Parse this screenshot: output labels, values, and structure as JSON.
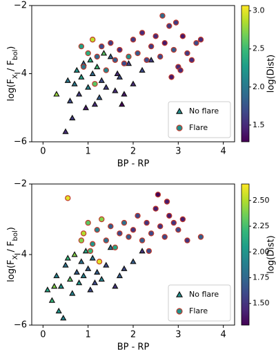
{
  "chart_data": [
    {
      "type": "scatter",
      "xlabel": "BP - RP",
      "ylabel": [
        "log(F",
        "X",
        " / F",
        "bol",
        ")"
      ],
      "xlim": [
        -0.25,
        4.25
      ],
      "ylim": [
        -6,
        -2
      ],
      "xticks": [
        0,
        1,
        2,
        3,
        4
      ],
      "yticks": [
        {
          "value": -6,
          "label": "−6"
        },
        {
          "value": -4,
          "label": "−4"
        },
        {
          "value": -2,
          "label": "−2"
        }
      ],
      "legend": "lower right",
      "colorbar": {
        "label": "log(Dist)",
        "colormap": "viridis",
        "clim": [
          1.28,
          3.07
        ],
        "ticks": [
          1.5,
          {
            "value": 2,
            "label": "2.0"
          },
          2.5,
          {
            "value": 3,
            "label": "3.0"
          }
        ]
      },
      "series": [
        {
          "name": "No flare",
          "marker": "triangle",
          "edgecolor": "#111111",
          "x": [
            0.5,
            0.6,
            0.7,
            0.75,
            0.8,
            0.85,
            0.9,
            0.95,
            1.0,
            1.05,
            1.1,
            1.15,
            1.2,
            1.3,
            1.4,
            1.5,
            1.6,
            1.7,
            1.8,
            1.9,
            2.0,
            2.2,
            0.3,
            0.65,
            0.55,
            1.25,
            1.35,
            1.75,
            2.4,
            1.65
          ],
          "values": [
            -5.7,
            -4.8,
            -4.3,
            -3.9,
            -4.6,
            -4.1,
            -3.7,
            -5.0,
            -4.4,
            -3.6,
            -4.0,
            -4.9,
            -3.8,
            -4.2,
            -4.4,
            -3.5,
            -4.5,
            -4.1,
            -4.6,
            -3.7,
            -4.3,
            -3.9,
            -4.6,
            -5.3,
            -4.2,
            -4.7,
            -3.4,
            -4.9,
            -3.6,
            -4.0
          ],
          "c": [
            1.5,
            1.7,
            2.0,
            2.2,
            1.6,
            2.3,
            1.8,
            1.4,
            2.1,
            2.4,
            1.9,
            1.5,
            2.5,
            1.7,
            1.6,
            1.8,
            1.5,
            1.7,
            1.4,
            1.6,
            1.5,
            1.7,
            2.8,
            1.6,
            2.0,
            1.8,
            2.6,
            1.3,
            1.6,
            1.5
          ]
        },
        {
          "name": "Flare",
          "marker": "circle",
          "edgecolor": "#c0392b",
          "x": [
            0.9,
            1.0,
            1.1,
            1.2,
            1.3,
            1.4,
            1.5,
            1.6,
            1.7,
            1.8,
            1.9,
            2.0,
            2.1,
            2.2,
            2.3,
            2.4,
            2.5,
            2.6,
            2.7,
            2.8,
            2.9,
            3.0,
            3.1,
            3.2,
            3.3,
            3.4,
            3.5,
            2.65,
            2.85,
            1.15,
            0.85,
            2.95,
            3.05
          ],
          "values": [
            -3.8,
            -3.4,
            -3.0,
            -3.5,
            -3.2,
            -3.9,
            -3.1,
            -3.6,
            -3.3,
            -3.7,
            -3.5,
            -3.0,
            -3.4,
            -2.8,
            -3.6,
            -3.2,
            -2.9,
            -3.5,
            -3.1,
            -2.6,
            -3.3,
            -3.8,
            -2.9,
            -3.4,
            -3.6,
            -3.1,
            -3.0,
            -2.3,
            -4.1,
            -4.3,
            -3.2,
            -2.5,
            -3.9
          ],
          "c": [
            2.0,
            2.4,
            2.9,
            1.9,
            1.7,
            2.1,
            1.6,
            1.8,
            1.5,
            1.7,
            2.2,
            1.6,
            1.8,
            1.5,
            1.7,
            1.6,
            1.5,
            1.7,
            1.4,
            1.6,
            1.8,
            1.5,
            1.4,
            1.6,
            1.5,
            1.7,
            1.5,
            1.9,
            1.4,
            2.6,
            2.3,
            1.6,
            1.5
          ]
        }
      ]
    },
    {
      "type": "scatter",
      "xlabel": "BP - RP",
      "ylabel": [
        "log(F",
        "X",
        " / F",
        "bol",
        ")"
      ],
      "xlim": [
        -0.25,
        4.25
      ],
      "ylim": [
        -6,
        -2
      ],
      "xticks": [
        0,
        1,
        2,
        3,
        4
      ],
      "yticks": [
        {
          "value": -6,
          "label": "−6"
        },
        {
          "value": -4,
          "label": "−4"
        },
        {
          "value": -2,
          "label": "−2"
        }
      ],
      "legend": "lower right",
      "colorbar": {
        "label": "log(Dist)",
        "colormap": "viridis",
        "clim": [
          1.29,
          2.66
        ],
        "ticks": [
          {
            "value": 1.5,
            "label": "1.50"
          },
          {
            "value": 1.75,
            "label": "1.75"
          },
          {
            "value": 2,
            "label": "2.00"
          },
          {
            "value": 2.25,
            "label": "2.25"
          },
          {
            "value": 2.5,
            "label": "2.50"
          }
        ]
      },
      "series": [
        {
          "name": "No flare",
          "marker": "triangle",
          "edgecolor": "#111111",
          "x": [
            0.1,
            0.2,
            0.3,
            0.4,
            0.5,
            0.6,
            0.65,
            0.7,
            0.75,
            0.8,
            0.85,
            0.9,
            0.95,
            1.0,
            1.05,
            1.1,
            1.2,
            1.3,
            1.4,
            1.5,
            1.6,
            1.8,
            2.0,
            2.2,
            0.35,
            0.55,
            0.45,
            1.15,
            1.7,
            0.25
          ],
          "values": [
            -5.0,
            -5.3,
            -4.6,
            -4.9,
            -4.3,
            -4.7,
            -5.1,
            -4.0,
            -4.5,
            -4.8,
            -4.2,
            -4.6,
            -3.9,
            -4.4,
            -5.0,
            -4.1,
            -4.5,
            -4.7,
            -4.3,
            -3.8,
            -4.9,
            -4.4,
            -4.2,
            -3.9,
            -5.6,
            -4.1,
            -5.8,
            -4.8,
            -4.6,
            -4.9
          ],
          "c": [
            2.1,
            2.2,
            1.9,
            2.0,
            1.8,
            2.3,
            1.9,
            2.4,
            1.7,
            2.0,
            1.8,
            1.9,
            2.1,
            1.7,
            1.6,
            1.8,
            1.7,
            1.9,
            1.6,
            1.8,
            1.5,
            1.6,
            1.7,
            1.5,
            2.0,
            2.2,
            1.9,
            1.6,
            1.7,
            2.4
          ]
        },
        {
          "name": "Flare",
          "marker": "circle",
          "edgecolor": "#c0392b",
          "x": [
            0.55,
            0.9,
            1.0,
            1.1,
            1.2,
            1.3,
            1.4,
            1.5,
            1.6,
            1.7,
            1.8,
            1.9,
            2.0,
            2.1,
            2.2,
            2.3,
            2.4,
            2.5,
            2.6,
            2.7,
            2.8,
            2.9,
            3.0,
            3.1,
            3.2,
            3.5,
            2.55,
            1.05,
            1.25,
            0.85,
            2.75,
            2.35
          ],
          "values": [
            -2.4,
            -3.4,
            -3.1,
            -3.7,
            -3.3,
            -3.0,
            -3.6,
            -3.2,
            -3.8,
            -3.4,
            -3.1,
            -3.5,
            -3.3,
            -2.9,
            -3.6,
            -3.1,
            -3.4,
            -2.7,
            -3.2,
            -3.5,
            -2.9,
            -3.1,
            -3.3,
            -3.0,
            -3.6,
            -3.5,
            -2.3,
            -3.9,
            -4.2,
            -3.6,
            -2.5,
            -3.9
          ],
          "c": [
            2.6,
            2.5,
            2.3,
            2.0,
            1.9,
            2.4,
            1.8,
            1.7,
            2.1,
            1.6,
            1.8,
            1.7,
            1.5,
            1.6,
            1.7,
            1.5,
            1.6,
            1.4,
            1.5,
            1.6,
            1.4,
            1.5,
            1.6,
            1.4,
            1.5,
            1.7,
            1.3,
            2.2,
            2.6,
            2.4,
            1.4,
            1.6
          ]
        }
      ]
    }
  ]
}
